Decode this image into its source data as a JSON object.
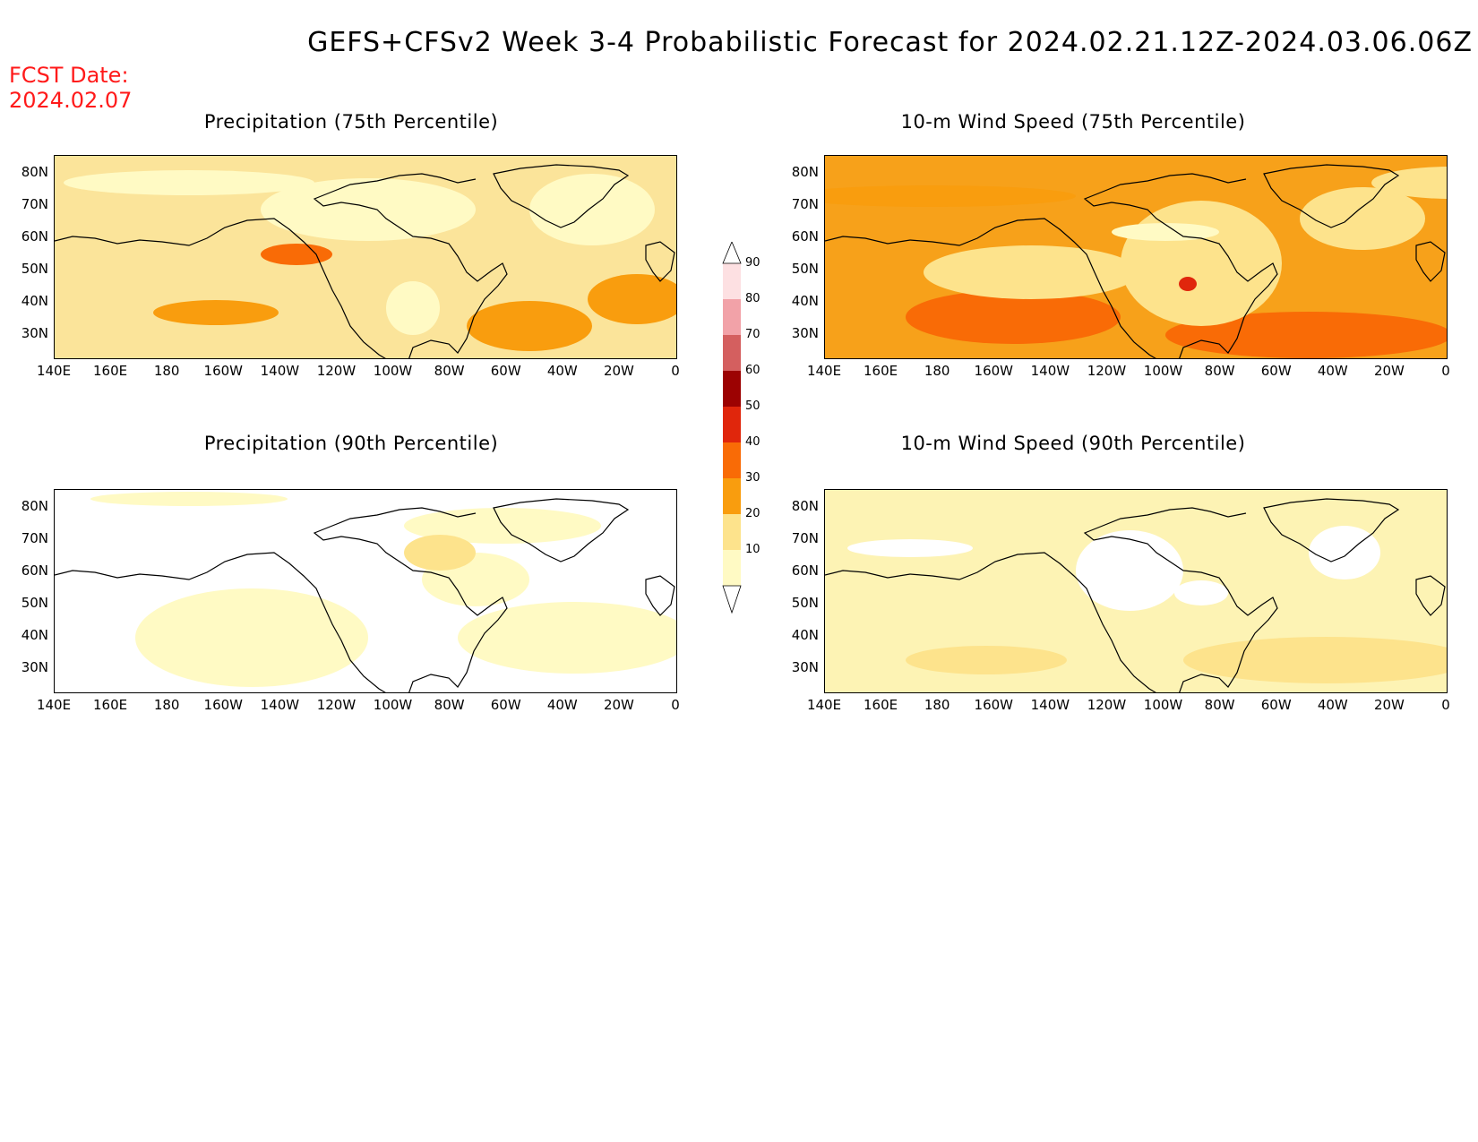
{
  "header": {
    "title": "GEFS+CFSv2 Week 3-4 Probabilistic Forecast for 2024.02.21.12Z-2024.03.06.06Z",
    "fcst_label": "FCST Date:",
    "fcst_date": "2024.02.07"
  },
  "axes": {
    "lat_labels": [
      "80N",
      "70N",
      "60N",
      "50N",
      "40N",
      "30N"
    ],
    "lon_labels": [
      "140E",
      "160E",
      "180",
      "160W",
      "140W",
      "120W",
      "100W",
      "80W",
      "60W",
      "40W",
      "20W",
      "0"
    ]
  },
  "panels": [
    {
      "title": "Precipitation (75th Percentile)",
      "base_color": "#fbe49a"
    },
    {
      "title": "10-m Wind Speed (75th Percentile)",
      "base_color": "#f7a11a"
    },
    {
      "title": "Precipitation (90th Percentile)",
      "base_color": "#ffffff"
    },
    {
      "title": "10-m Wind Speed (90th Percentile)",
      "base_color": "#fdf3b4"
    }
  ],
  "colorbar": {
    "levels": [
      "10",
      "20",
      "30",
      "40",
      "50",
      "60",
      "70",
      "80",
      "90"
    ],
    "colors": [
      "#fffac4",
      "#fde38c",
      "#f99d0e",
      "#f96b06",
      "#e0260c",
      "#9c0202",
      "#d45f5f",
      "#f2a2a8",
      "#fde0e2"
    ]
  }
}
